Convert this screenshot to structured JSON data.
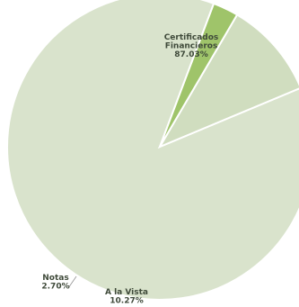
{
  "chart_data": {
    "type": "pie",
    "categories": [
      "Certificados Financieros",
      "A la Vista",
      "Notas"
    ],
    "values": [
      87.03,
      10.27,
      2.7
    ],
    "slices": [
      {
        "label_lines": [
          "Certificados",
          "Financieros"
        ],
        "value_label": "87.03%",
        "value": 87.03,
        "color": "#d9e3cc"
      },
      {
        "label_lines": [
          "A la Vista"
        ],
        "value_label": "10.27%",
        "value": 10.27,
        "color": "#d0ddbf"
      },
      {
        "label_lines": [
          "Notas"
        ],
        "value_label": "2.70%",
        "value": 2.7,
        "color": "#9fc46a"
      }
    ],
    "title": "",
    "legend": "none",
    "labels_position": "on-slices"
  }
}
